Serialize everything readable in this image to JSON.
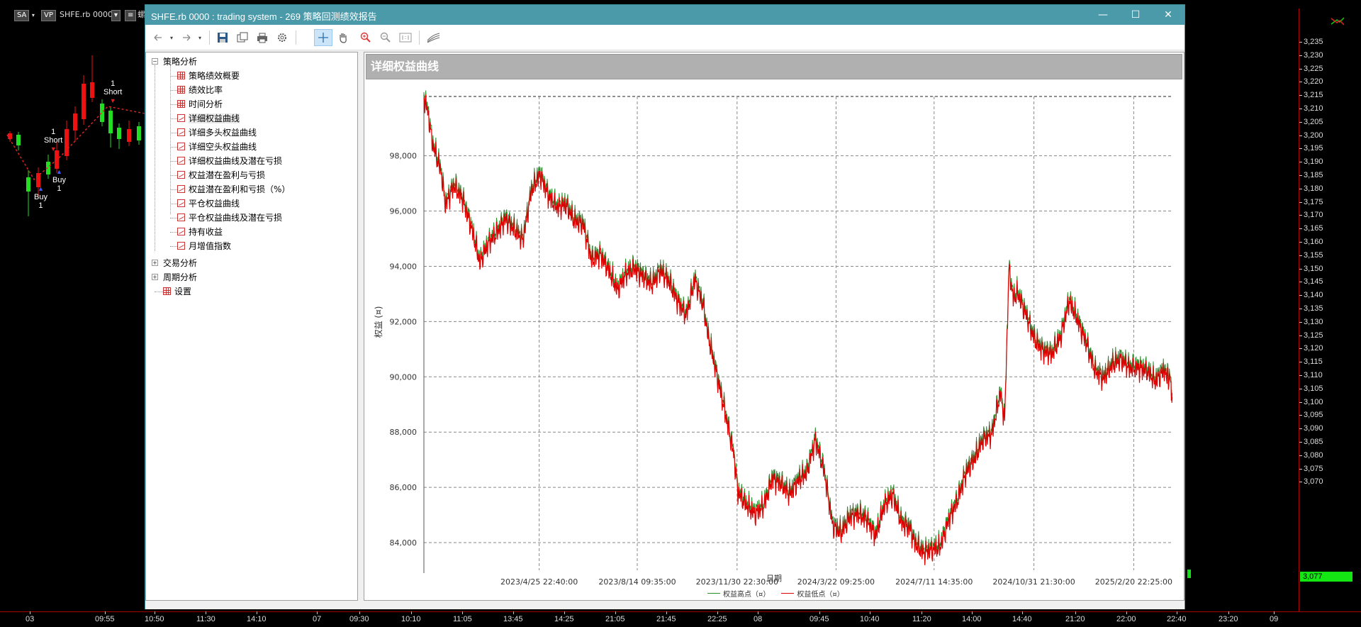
{
  "background": {
    "symbol_chip": "SA",
    "vp_chip": "VP",
    "symbol_label": "SHFE.rb 0000",
    "trailing_char": "螺",
    "price_ticks": [
      "3,235",
      "3,230",
      "3,225",
      "3,220",
      "3,215",
      "3,210",
      "3,205",
      "3,200",
      "3,195",
      "3,190",
      "3,185",
      "3,180",
      "3,175",
      "3,170",
      "3,165",
      "3,160",
      "3,155",
      "3,150",
      "3,145",
      "3,140",
      "3,135",
      "3,130",
      "3,125",
      "3,120",
      "3,115",
      "3,110",
      "3,105",
      "3,100",
      "3,095",
      "3,090",
      "3,085",
      "3,080",
      "3,075",
      "3,070"
    ],
    "last_price": "3,077",
    "time_ticks": [
      "03",
      "09:55",
      "10:50",
      "11:30",
      "14:10",
      "07",
      "09:30",
      "10:10",
      "11:05",
      "13:45",
      "14:25",
      "21:05",
      "21:45",
      "22:25",
      "08",
      "09:45",
      "10:40",
      "11:20",
      "14:00",
      "14:40",
      "21:20",
      "22:00",
      "22:40",
      "23:20",
      "09"
    ],
    "signals": [
      {
        "label": "Short",
        "qty": "1"
      },
      {
        "label": "Short",
        "qty": "1"
      },
      {
        "label": "Buy",
        "qty": "1"
      },
      {
        "label": "Buy",
        "qty": "1"
      }
    ]
  },
  "window": {
    "title": "SHFE.rb 0000 : trading system - 269 策略回测绩效报告",
    "min_label": "—",
    "max_label": "☐",
    "close_label": "✕"
  },
  "tree": {
    "root1": "策略分析",
    "children": [
      "策略绩效概要",
      "绩效比率",
      "时间分析",
      "详细权益曲线",
      "详细多头权益曲线",
      "详细空头权益曲线",
      "详细权益曲线及潜在亏损",
      "权益潜在盈利与亏损",
      "权益潜在盈利和亏损（%）",
      "平仓权益曲线",
      "平仓权益曲线及潜在亏损",
      "持有收益",
      "月增值指数"
    ],
    "root2": "交易分析",
    "root3": "周期分析",
    "root4": "设置"
  },
  "chart_data": {
    "type": "line",
    "title": "详细权益曲线",
    "xlabel": "日期",
    "ylabel": "权益 (¤)",
    "ylim": [
      83000,
      100300
    ],
    "y_ticks": [
      "84,000",
      "86,000",
      "88,000",
      "90,000",
      "92,000",
      "94,000",
      "96,000",
      "98,000"
    ],
    "y_tick_values": [
      84000,
      86000,
      88000,
      90000,
      92000,
      94000,
      96000,
      98000
    ],
    "x_ticks": [
      "2023/4/25 22:40:00",
      "2023/8/14 09:35:00",
      "2023/11/30 22:30:00",
      "2024/3/22 09:25:00",
      "2024/7/11 14:35:00",
      "2024/10/31 21:30:00",
      "2025/2/20 22:25:00"
    ],
    "grid": true,
    "legend_position": "bottom",
    "series": [
      {
        "name": "权益高点（¤）",
        "color": "#2e8b2e"
      },
      {
        "name": "权益低点（¤）",
        "color": "#dd0000"
      }
    ],
    "points": [
      [
        0,
        100200
      ],
      [
        0.5,
        99600
      ],
      [
        1,
        98500
      ],
      [
        2,
        97500
      ],
      [
        2.5,
        96300
      ],
      [
        3.5,
        97000
      ],
      [
        4.5,
        96500
      ],
      [
        5.5,
        95500
      ],
      [
        6.5,
        94200
      ],
      [
        7.5,
        94900
      ],
      [
        8.5,
        95300
      ],
      [
        9.5,
        95800
      ],
      [
        10.5,
        95400
      ],
      [
        11.5,
        95000
      ],
      [
        12.5,
        96800
      ],
      [
        13.5,
        97400
      ],
      [
        14.5,
        96600
      ],
      [
        15.5,
        96200
      ],
      [
        16.5,
        96300
      ],
      [
        17.5,
        95700
      ],
      [
        18.5,
        95600
      ],
      [
        19.5,
        94300
      ],
      [
        20.5,
        94500
      ],
      [
        21.5,
        93900
      ],
      [
        22.5,
        93200
      ],
      [
        23.5,
        93800
      ],
      [
        24.5,
        94000
      ],
      [
        25.5,
        93700
      ],
      [
        26.5,
        93400
      ],
      [
        27.5,
        93900
      ],
      [
        28.5,
        93500
      ],
      [
        29.5,
        92800
      ],
      [
        30.5,
        92300
      ],
      [
        31.5,
        93600
      ],
      [
        32.5,
        92600
      ],
      [
        33,
        91600
      ],
      [
        34,
        90200
      ],
      [
        35,
        88800
      ],
      [
        36,
        87300
      ],
      [
        36.5,
        85900
      ],
      [
        37.5,
        85400
      ],
      [
        38.5,
        85100
      ],
      [
        39.5,
        85400
      ],
      [
        40.5,
        86400
      ],
      [
        41.5,
        86200
      ],
      [
        42.5,
        85800
      ],
      [
        43.5,
        86300
      ],
      [
        44.5,
        86600
      ],
      [
        45.5,
        87800
      ],
      [
        46.5,
        86700
      ],
      [
        47.5,
        84700
      ],
      [
        48.5,
        84400
      ],
      [
        49.5,
        85000
      ],
      [
        50.5,
        85100
      ],
      [
        51.5,
        84900
      ],
      [
        52.5,
        84300
      ],
      [
        53.5,
        85400
      ],
      [
        54.5,
        85800
      ],
      [
        55.5,
        84800
      ],
      [
        56.5,
        84600
      ],
      [
        57,
        84100
      ],
      [
        58,
        83700
      ],
      [
        59,
        83800
      ],
      [
        60,
        83900
      ],
      [
        61,
        84900
      ],
      [
        62,
        85600
      ],
      [
        63,
        86600
      ],
      [
        64,
        87100
      ],
      [
        65,
        87800
      ],
      [
        66,
        88000
      ],
      [
        67,
        89500
      ],
      [
        67.5,
        88500
      ],
      [
        68,
        94000
      ],
      [
        68.5,
        92900
      ],
      [
        69,
        93100
      ],
      [
        70,
        92300
      ],
      [
        71,
        91400
      ],
      [
        72,
        91000
      ],
      [
        73,
        90900
      ],
      [
        74,
        91500
      ],
      [
        75,
        92800
      ],
      [
        76,
        92100
      ],
      [
        77,
        91300
      ],
      [
        78,
        90300
      ],
      [
        79,
        90000
      ],
      [
        80,
        90500
      ],
      [
        81,
        90700
      ],
      [
        82,
        90400
      ],
      [
        83,
        90400
      ],
      [
        84,
        90300
      ],
      [
        85,
        89900
      ],
      [
        86,
        90300
      ],
      [
        86.8,
        89900
      ],
      [
        87,
        88800
      ]
    ],
    "x_range": [
      0,
      87
    ],
    "x_tick_positions": [
      13.4,
      24.8,
      36.4,
      47.9,
      59.3,
      70.9,
      82.5
    ]
  }
}
